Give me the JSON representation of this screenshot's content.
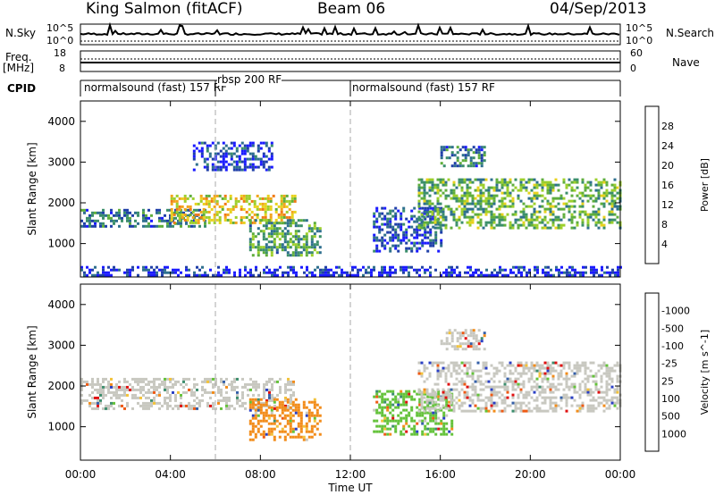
{
  "header": {
    "station": "King Salmon (fitACF)",
    "beam": "Beam 06",
    "date": "04/Sep/2013"
  },
  "left_labels": {
    "nsky": "N.Sky",
    "nsky_hi": "10^5",
    "nsky_lo": "10^0",
    "freq": "Freq.",
    "freq_unit": "[MHz]",
    "freq_hi": "18",
    "freq_lo": "8",
    "cpid": "CPID"
  },
  "right_labels": {
    "nsearch": "N.Search",
    "nsearch_hi": "10^5",
    "nsearch_lo": "10^0",
    "nave": "Nave",
    "nave_hi": "60",
    "nave_lo": "0"
  },
  "cpid_segments": [
    {
      "label": "normalsound (fast) 157 RF",
      "start": 0,
      "end": 6.0
    },
    {
      "label": "rbsp 200 RF",
      "start": 6.0,
      "end": 12.0
    },
    {
      "label": "normalsound (fast) 157 RF",
      "start": 12.0,
      "end": 24.0
    }
  ],
  "chart_data": [
    {
      "type": "heatmap",
      "title": "",
      "xlabel": "Time UT",
      "ylabel": "Slant Range [km]",
      "x_ticks": [
        "00:00",
        "04:00",
        "08:00",
        "12:00",
        "16:00",
        "20:00",
        "00:00"
      ],
      "y_ticks": [
        1000,
        2000,
        3000,
        4000
      ],
      "xlim_hours": [
        0,
        24
      ],
      "ylim_km": [
        180,
        4500
      ],
      "colorbar": {
        "label": "Power [dB]",
        "ticks": [
          4,
          8,
          12,
          16,
          20,
          24,
          28
        ],
        "colors": [
          "#1a1aff",
          "#1f3fa8",
          "#2e6f8e",
          "#3b8f6a",
          "#5fae3c",
          "#9ccf2c",
          "#e8d21d",
          "#f2a41b",
          "#f07a16",
          "#e8471a",
          "#e01010"
        ]
      },
      "echo_regions": [
        {
          "name": "",
          "t0": 0.0,
          "t1": 5.6,
          "r0": 1450,
          "r1": 1850,
          "level": 0.25
        },
        {
          "name": "",
          "t0": 4.0,
          "t1": 9.5,
          "r0": 1500,
          "r1": 2200,
          "level": 0.6
        },
        {
          "name": "",
          "t0": 7.5,
          "t1": 10.6,
          "r0": 700,
          "r1": 1600,
          "level": 0.35
        },
        {
          "name": "",
          "t0": 5.0,
          "t1": 8.5,
          "r0": 2800,
          "r1": 3500,
          "level": 0.12
        },
        {
          "name": "",
          "t0": 13.0,
          "t1": 16.0,
          "r0": 800,
          "r1": 1900,
          "level": 0.15
        },
        {
          "name": "",
          "t0": 15.0,
          "t1": 24.0,
          "r0": 1400,
          "r1": 2600,
          "level": 0.4
        },
        {
          "name": "",
          "t0": 16.0,
          "t1": 18.0,
          "r0": 2900,
          "r1": 3400,
          "level": 0.25
        },
        {
          "name": "",
          "t0": 0.0,
          "t1": 24.0,
          "r0": 200,
          "r1": 450,
          "level": 0.08
        }
      ]
    },
    {
      "type": "heatmap",
      "title": "",
      "xlabel": "Time UT",
      "ylabel": "Slant Range [km]",
      "x_ticks": [
        "00:00",
        "04:00",
        "08:00",
        "12:00",
        "16:00",
        "20:00",
        "00:00"
      ],
      "y_ticks": [
        1000,
        2000,
        3000,
        4000
      ],
      "xlim_hours": [
        0,
        24
      ],
      "ylim_km": [
        180,
        4500
      ],
      "colorbar": {
        "label": "Velocity [m s^-1]",
        "ticks": [
          "1000",
          "500",
          "100",
          "25",
          "-25",
          "-100",
          "-500",
          "-1000"
        ],
        "colors": [
          "#2a3fc4",
          "#3560a8",
          "#3d8e6e",
          "#64c23a",
          "#c8c8c0",
          "#c8c8c0",
          "#f2c23a",
          "#f28c1a",
          "#ee5a14",
          "#e01010"
        ]
      },
      "echo_regions": [
        {
          "name": "",
          "t0": 0.0,
          "t1": 9.5,
          "r0": 1450,
          "r1": 2200,
          "color": "#c8c8c0"
        },
        {
          "name": "",
          "t0": 7.5,
          "t1": 10.6,
          "r0": 700,
          "r1": 1700,
          "color": "#f28c1a"
        },
        {
          "name": "",
          "t0": 13.0,
          "t1": 16.5,
          "r0": 800,
          "r1": 1900,
          "color": "#64c23a"
        },
        {
          "name": "",
          "t0": 15.0,
          "t1": 24.0,
          "r0": 1400,
          "r1": 2600,
          "color": "#c8c8c0"
        },
        {
          "name": "",
          "t0": 16.0,
          "t1": 18.0,
          "r0": 2900,
          "r1": 3400,
          "color": "#c8c8c0"
        }
      ]
    }
  ]
}
